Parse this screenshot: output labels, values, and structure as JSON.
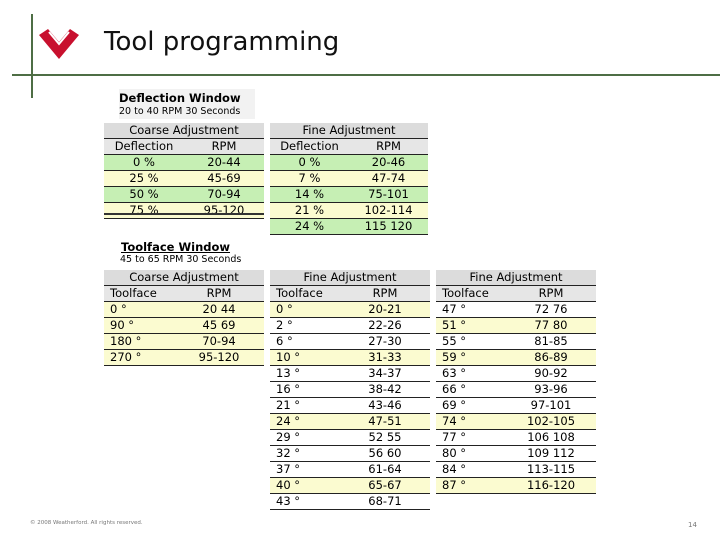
{
  "slide": {
    "title": "Tool programming",
    "footer": "© 2008 Weatherford. All rights reserved.",
    "page_number": "14"
  },
  "deflection_window": {
    "title": "Deflection Window",
    "subtitle": "20 to 40 RPM  30 Seconds",
    "coarse": {
      "header": "Coarse Adjustment",
      "columns": [
        "Deflection",
        "RPM"
      ],
      "rows": [
        {
          "a": "0 %",
          "b": "20-44"
        },
        {
          "a": "25 %",
          "b": "45-69"
        },
        {
          "a": "50 %",
          "b": "70-94"
        },
        {
          "a": "75 %",
          "b": "95-120"
        }
      ]
    },
    "fine": {
      "header": "Fine Adjustment",
      "columns": [
        "Deflection",
        "RPM"
      ],
      "rows": [
        {
          "a": "0 %",
          "b": "20-46"
        },
        {
          "a": "7 %",
          "b": "47-74"
        },
        {
          "a": "14 %",
          "b": "75-101"
        },
        {
          "a": "21 %",
          "b": "102-114"
        },
        {
          "a": "24 %",
          "b": "115 120"
        }
      ]
    }
  },
  "toolface_window": {
    "title": "Toolface Window",
    "subtitle": "45 to 65 RPM  30 Seconds",
    "coarse": {
      "header": "Coarse Adjustment",
      "columns": [
        "Toolface",
        "RPM"
      ],
      "rows": [
        {
          "a": "0 °",
          "b": "20 44"
        },
        {
          "a": "90 °",
          "b": "45 69"
        },
        {
          "a": "180 °",
          "b": "70-94"
        },
        {
          "a": "270 °",
          "b": "95-120"
        }
      ]
    },
    "fine1": {
      "header": "Fine Adjustment",
      "columns": [
        "Toolface",
        "RPM"
      ],
      "rows": [
        {
          "a": "0 °",
          "b": "20-21"
        },
        {
          "a": "2 °",
          "b": "22-26"
        },
        {
          "a": "6 °",
          "b": "27-30"
        },
        {
          "a": "10 °",
          "b": "31-33"
        },
        {
          "a": "13 °",
          "b": "34-37"
        },
        {
          "a": "16 °",
          "b": "38-42"
        },
        {
          "a": "21 °",
          "b": "43-46"
        },
        {
          "a": "24 °",
          "b": "47-51"
        },
        {
          "a": "29 °",
          "b": "52 55"
        },
        {
          "a": "32 °",
          "b": "56 60"
        },
        {
          "a": "37 °",
          "b": "61-64"
        },
        {
          "a": "40 °",
          "b": "65-67"
        },
        {
          "a": "43 °",
          "b": "68-71"
        }
      ]
    },
    "fine2": {
      "header": "Fine Adjustment",
      "columns": [
        "Toolface",
        "RPM"
      ],
      "rows": [
        {
          "a": "47 °",
          "b": "72 76"
        },
        {
          "a": "51 °",
          "b": "77 80"
        },
        {
          "a": "55 °",
          "b": "81-85"
        },
        {
          "a": "59 °",
          "b": "86-89"
        },
        {
          "a": "63 °",
          "b": "90-92"
        },
        {
          "a": "66 °",
          "b": "93-96"
        },
        {
          "a": "69 °",
          "b": "97-101"
        },
        {
          "a": "74 °",
          "b": "102-105"
        },
        {
          "a": "77 °",
          "b": "106 108"
        },
        {
          "a": "80 °",
          "b": "109 112"
        },
        {
          "a": "84 °",
          "b": "113-115"
        },
        {
          "a": "87 °",
          "b": "116-120"
        }
      ]
    }
  },
  "colors": {
    "accent_line": "#4e6e45",
    "logo_red": "#c8102e",
    "row_green": "#c6efb4",
    "row_yellow": "#fbfbd0"
  }
}
